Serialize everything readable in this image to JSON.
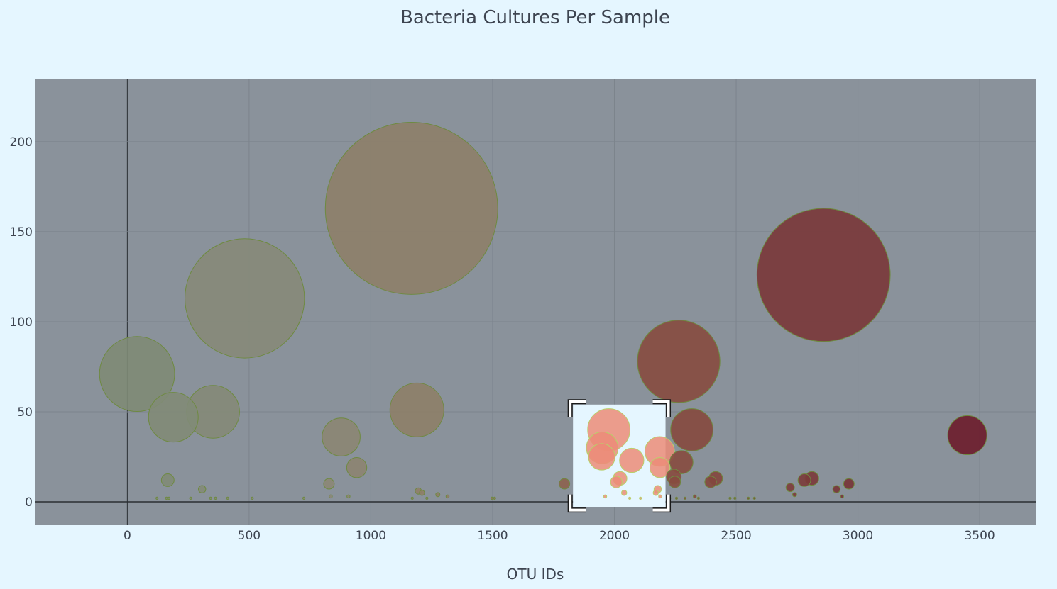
{
  "chart_data": {
    "type": "scatter",
    "title": "Bacteria Cultures Per Sample",
    "xlabel": "OTU IDs",
    "ylabel": "",
    "xlim": [
      -380,
      3730
    ],
    "ylim": [
      -13,
      235
    ],
    "x_ticks": [
      0,
      500,
      1000,
      1500,
      2000,
      2500,
      3000,
      3500
    ],
    "y_ticks": [
      0,
      50,
      100,
      150,
      200
    ],
    "grid": true,
    "legend": "none",
    "bubble_size_encodes": "y value",
    "color_scale": [
      "#7d8b76",
      "#8a8a7a",
      "#8f7a60",
      "#8a5040",
      "#7a3a3a",
      "#6a1a2a"
    ],
    "plot_background": "#8a929b",
    "page_background": "#e5f6ff",
    "x": [
      40,
      189,
      352,
      482,
      1167,
      1189,
      878,
      942,
      166,
      307,
      828,
      1795,
      1977,
      1950,
      1948,
      2071,
      2186,
      2187,
      2023,
      2008,
      2264,
      2318,
      2275,
      2244,
      2248,
      2416,
      2395,
      2859,
      3449,
      2811,
      2780,
      2722,
      2963,
      2912,
      1195,
      1210,
      1275,
      1315,
      908,
      835,
      122,
      161,
      171,
      260,
      342,
      362,
      412,
      513,
      725,
      1170,
      1230,
      1497,
      1508,
      1962,
      2040,
      2063,
      2107,
      2170,
      2178,
      2188,
      2227,
      2255,
      2290,
      2330,
      2345,
      2475,
      2495,
      2550,
      2575,
      2740,
      2935
    ],
    "y": [
      71,
      47,
      50,
      113,
      163,
      51,
      36,
      19,
      12,
      7,
      10,
      10,
      40,
      30,
      25,
      23,
      28,
      19,
      13,
      11,
      78,
      40,
      22,
      14,
      11,
      13,
      11,
      126,
      37,
      13,
      12,
      8,
      10,
      7,
      6,
      5,
      4,
      3,
      3,
      3,
      2,
      2,
      2,
      2,
      2,
      2,
      2,
      2,
      2,
      2,
      2,
      2,
      2,
      3,
      5,
      2,
      2,
      5,
      7,
      3,
      2,
      2,
      2,
      3,
      2,
      2,
      2,
      2,
      2,
      4,
      3
    ]
  }
}
